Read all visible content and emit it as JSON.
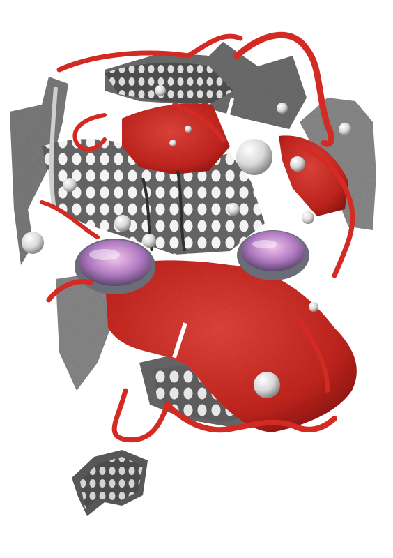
{
  "artwork": {
    "subject": "abstract-3d-collage",
    "colors": {
      "background": "#ffffff",
      "red_primary": "#d42a24",
      "red_dark": "#8e1512",
      "red_highlight": "#f0564c",
      "gray_dark": "#2e2e2e",
      "gray_mid": "#7d7d7d",
      "gray_light": "#cfcfcf",
      "dot": "#f4f4f4",
      "lens_purple": "#b07ac2",
      "lens_pink": "#e4a7d6",
      "lens_rim": "#6a6d78"
    }
  }
}
